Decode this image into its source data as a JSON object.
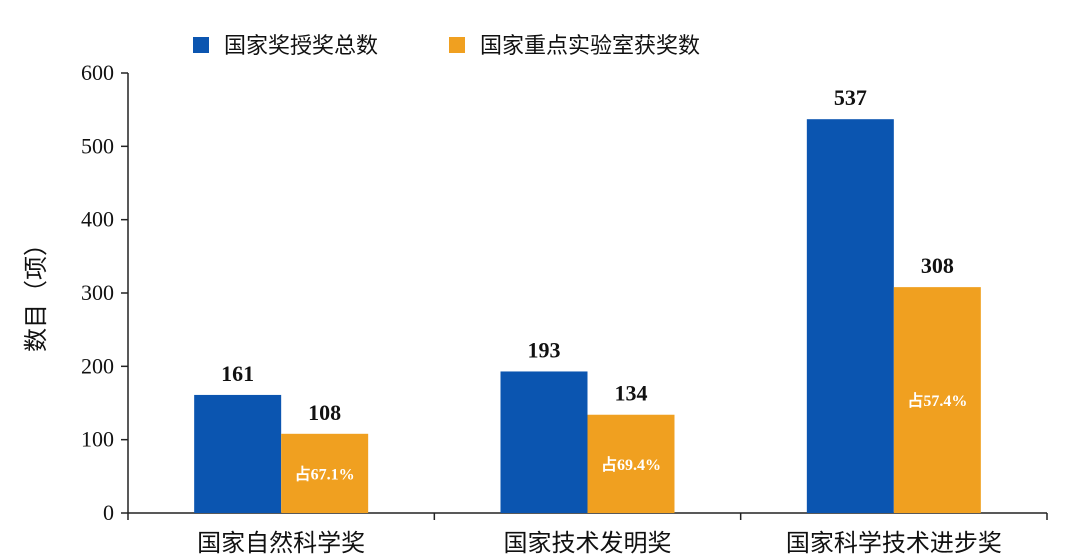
{
  "chart_data": {
    "type": "bar",
    "categories": [
      "国家自然科学奖",
      "国家技术发明奖",
      "国家科学技术进步奖"
    ],
    "series": [
      {
        "name": "国家奖授奖总数",
        "values": [
          161,
          193,
          537
        ],
        "color": "#0b55b0",
        "data_labels": [
          "161",
          "193",
          "537"
        ]
      },
      {
        "name": "国家重点实验室获奖数",
        "values": [
          108,
          134,
          308
        ],
        "color": "#f0a020",
        "data_labels": [
          "108",
          "134",
          "308"
        ]
      }
    ],
    "inner_labels": [
      "占67.1%",
      "占69.4%",
      "占57.4%"
    ],
    "ylabel": "数目（项）",
    "ylim": [
      0,
      600
    ],
    "yticks": [
      "0",
      "100",
      "200",
      "300",
      "400",
      "500",
      "600"
    ],
    "grid": false,
    "legend_position": "top"
  }
}
